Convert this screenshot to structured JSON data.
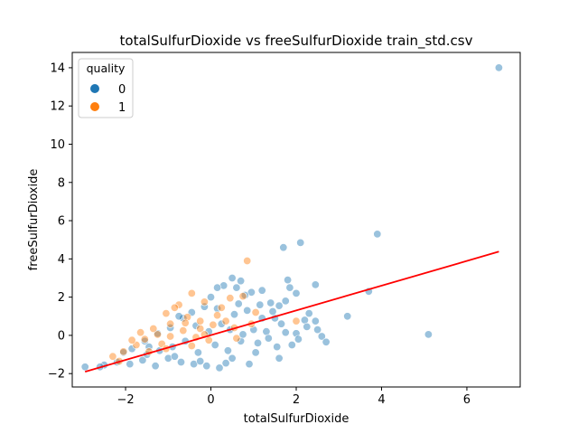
{
  "chart_data": {
    "type": "scatter",
    "title": "totalSulfurDioxide vs freeSulfurDioxide train_std.csv",
    "xlabel": "totalSulfurDioxide",
    "ylabel": "freeSulfurDioxide",
    "xlim": [
      -3.25,
      7.25
    ],
    "ylim": [
      -2.7,
      14.8
    ],
    "xticks": [
      -2,
      0,
      2,
      4,
      6
    ],
    "xtick_labels": [
      "−2",
      "0",
      "2",
      "4",
      "6"
    ],
    "yticks": [
      -2,
      0,
      2,
      4,
      6,
      8,
      10,
      12,
      14
    ],
    "ytick_labels": [
      "−2",
      "0",
      "2",
      "4",
      "6",
      "8",
      "10",
      "12",
      "14"
    ],
    "grid": false,
    "legend": {
      "title": "quality",
      "position": "top-left"
    },
    "series": [
      {
        "name": "0",
        "color": "#1f77b4",
        "points": [
          [
            6.75,
            14.0
          ],
          [
            3.9,
            5.3
          ],
          [
            2.1,
            4.85
          ],
          [
            1.7,
            4.6
          ],
          [
            3.7,
            2.3
          ],
          [
            5.1,
            0.05
          ],
          [
            3.2,
            1.0
          ],
          [
            2.6,
            -0.05
          ],
          [
            2.7,
            -0.35
          ],
          [
            2.5,
            0.3
          ],
          [
            2.45,
            0.75
          ],
          [
            2.3,
            1.15
          ],
          [
            2.2,
            0.8
          ],
          [
            2.45,
            2.65
          ],
          [
            1.8,
            2.9
          ],
          [
            2.0,
            2.2
          ],
          [
            1.85,
            2.5
          ],
          [
            1.75,
            1.8
          ],
          [
            1.6,
            1.55
          ],
          [
            1.4,
            1.7
          ],
          [
            1.2,
            2.35
          ],
          [
            0.95,
            2.25
          ],
          [
            0.8,
            2.1
          ],
          [
            0.5,
            3.0
          ],
          [
            0.7,
            2.85
          ],
          [
            0.6,
            2.5
          ],
          [
            0.3,
            2.6
          ],
          [
            0.15,
            2.5
          ],
          [
            0.0,
            2.0
          ],
          [
            1.5,
            0.9
          ],
          [
            1.3,
            0.2
          ],
          [
            1.1,
            -0.4
          ],
          [
            1.6,
            -1.2
          ],
          [
            1.9,
            -0.5
          ],
          [
            2.0,
            0.1
          ],
          [
            0.9,
            -1.5
          ],
          [
            0.5,
            -1.2
          ],
          [
            0.2,
            -1.7
          ],
          [
            -0.1,
            -1.6
          ],
          [
            -0.4,
            -1.5
          ],
          [
            -0.7,
            -1.4
          ],
          [
            -1.0,
            -1.2
          ],
          [
            -1.3,
            -1.6
          ],
          [
            -1.6,
            -1.3
          ],
          [
            -1.9,
            -1.5
          ],
          [
            -2.2,
            -1.4
          ],
          [
            -2.5,
            -1.55
          ],
          [
            -2.6,
            -1.65
          ],
          [
            -2.95,
            -1.65
          ],
          [
            -1.5,
            -1.0
          ],
          [
            -1.2,
            -0.8
          ],
          [
            -0.9,
            -0.6
          ],
          [
            -0.6,
            -0.3
          ],
          [
            -0.3,
            -0.9
          ],
          [
            0.1,
            -0.5
          ],
          [
            0.4,
            -0.8
          ],
          [
            0.7,
            -0.3
          ],
          [
            1.0,
            0.3
          ],
          [
            1.2,
            0.9
          ],
          [
            0.85,
            1.3
          ],
          [
            0.55,
            1.1
          ],
          [
            0.25,
            0.6
          ],
          [
            -0.05,
            0.2
          ],
          [
            -0.35,
            0.5
          ],
          [
            -0.65,
            0.9
          ],
          [
            -0.95,
            0.4
          ],
          [
            -1.25,
            0.1
          ],
          [
            -1.55,
            -0.3
          ],
          [
            -1.85,
            -0.7
          ],
          [
            -2.05,
            -0.9
          ],
          [
            1.45,
            1.25
          ],
          [
            1.65,
            0.6
          ],
          [
            1.35,
            -0.15
          ],
          [
            1.05,
            -0.9
          ],
          [
            0.75,
            0.05
          ],
          [
            0.45,
            0.3
          ],
          [
            0.15,
            1.4
          ],
          [
            -0.15,
            1.5
          ],
          [
            -0.45,
            1.2
          ],
          [
            -0.75,
            1.0
          ],
          [
            2.25,
            0.45
          ],
          [
            2.05,
            -0.2
          ],
          [
            1.75,
            0.15
          ],
          [
            1.55,
            -0.6
          ],
          [
            0.35,
            -1.45
          ],
          [
            -0.25,
            -1.35
          ],
          [
            -0.85,
            -1.1
          ],
          [
            -1.45,
            -0.6
          ],
          [
            0.65,
            1.65
          ],
          [
            1.15,
            1.6
          ]
        ]
      },
      {
        "name": "1",
        "color": "#ff7f0e",
        "points": [
          [
            0.85,
            3.9
          ],
          [
            -0.45,
            2.2
          ],
          [
            -0.75,
            1.6
          ],
          [
            -1.05,
            1.15
          ],
          [
            -1.35,
            0.35
          ],
          [
            -0.15,
            1.75
          ],
          [
            0.25,
            1.45
          ],
          [
            -0.55,
            0.95
          ],
          [
            -0.95,
            0.6
          ],
          [
            -1.55,
            -0.2
          ],
          [
            -1.75,
            -0.5
          ],
          [
            -2.05,
            -0.85
          ],
          [
            -2.3,
            -1.1
          ],
          [
            -0.25,
            0.75
          ],
          [
            0.05,
            0.55
          ],
          [
            0.45,
            1.95
          ],
          [
            0.75,
            2.05
          ],
          [
            -1.25,
            0.05
          ],
          [
            -0.65,
            0.25
          ],
          [
            -0.35,
            -0.1
          ],
          [
            -0.05,
            -0.25
          ],
          [
            0.6,
            -0.15
          ],
          [
            2.0,
            0.75
          ],
          [
            -1.85,
            -0.25
          ],
          [
            -1.15,
            -0.45
          ],
          [
            -0.85,
            1.45
          ],
          [
            -0.6,
            0.65
          ],
          [
            0.15,
            1.05
          ],
          [
            0.35,
            0.75
          ],
          [
            -1.45,
            -0.85
          ],
          [
            -0.95,
            -0.05
          ],
          [
            -0.25,
            0.35
          ],
          [
            0.55,
            0.4
          ],
          [
            1.05,
            1.2
          ],
          [
            -1.65,
            0.15
          ],
          [
            -0.45,
            -0.55
          ],
          [
            -2.15,
            -1.35
          ],
          [
            -1.05,
            -0.7
          ],
          [
            0.95,
            0.6
          ],
          [
            -0.15,
            0.05
          ]
        ]
      }
    ],
    "regression_line": {
      "color": "#ff0000",
      "x": [
        -2.95,
        6.75
      ],
      "y": [
        -1.9,
        4.38
      ]
    }
  }
}
